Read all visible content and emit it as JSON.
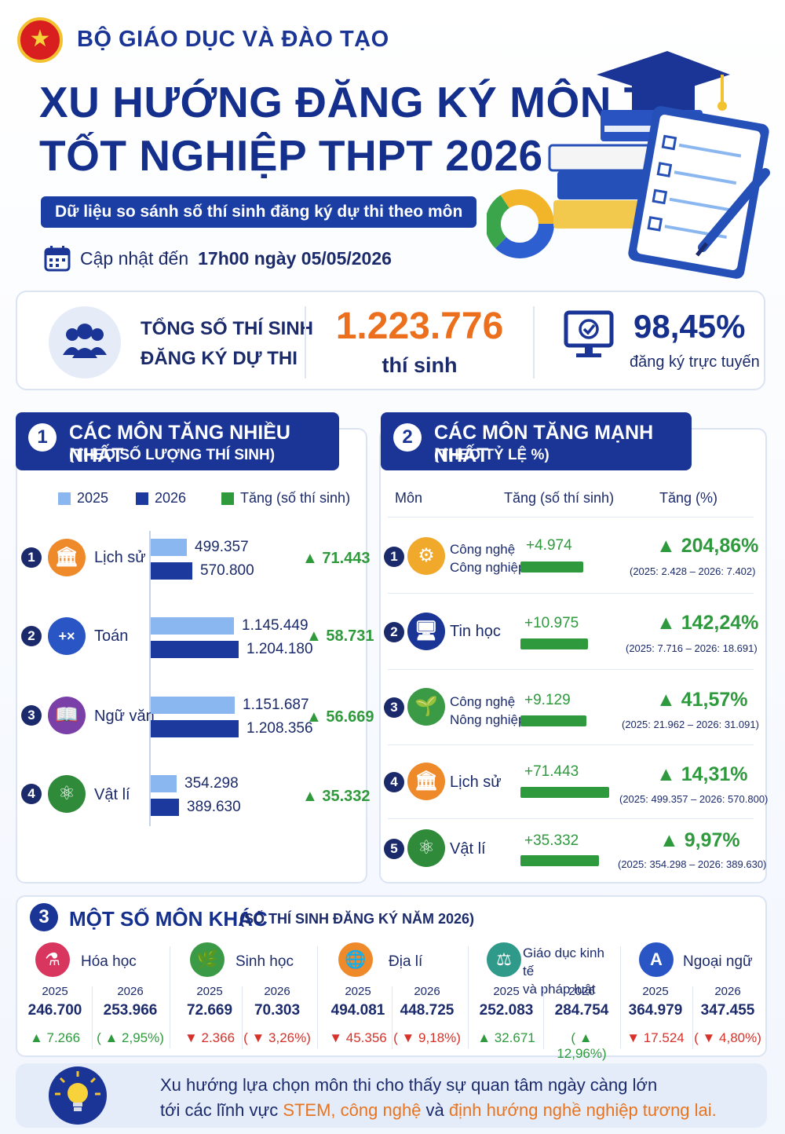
{
  "header": {
    "ministry": "BỘ GIÁO DỤC VÀ ĐÀO TẠO",
    "title_line1": "XU HƯỚNG ĐĂNG KÝ MÔN THI",
    "title_line2": "TỐT NGHIỆP THPT 2026",
    "subtitle": "Dữ liệu so sánh số thí sinh đăng ký dự thi theo môn",
    "update_prefix": "Cập nhật đến",
    "update_time": "17h00 ngày 05/05/2026"
  },
  "summary": {
    "label_line1": "TỔNG SỐ THÍ SINH",
    "label_line2": "ĐĂNG KÝ DỰ THI",
    "total": "1.223.776",
    "total_unit": "thí sinh",
    "online_pct": "98,45%",
    "online_label": "đăng ký trực tuyến"
  },
  "panel1": {
    "num": "1",
    "heading": "CÁC MÔN TĂNG NHIỀU NHẤT",
    "subheading": "(THEO SỐ LƯỢNG THÍ SINH)",
    "legend": [
      "2025",
      "2026",
      "Tăng (số thí sinh)"
    ]
  },
  "panel2": {
    "num": "2",
    "heading": "CÁC MÔN TĂNG MẠNH NHẤT",
    "subheading": "(THEO TỶ LỆ %)",
    "col_subject": "Môn",
    "col_increase": "Tăng (số thí sinh)",
    "col_pct": "Tăng (%)"
  },
  "chart_data": [
    {
      "type": "bar",
      "title": "CÁC MÔN TĂNG NHIỀU NHẤT",
      "categories": [
        "Lịch sử",
        "Toán",
        "Ngữ văn",
        "Vật lí"
      ],
      "ranks": [
        "1",
        "2",
        "3",
        "4"
      ],
      "series": [
        {
          "name": "2025",
          "values": [
            499357,
            1145449,
            1151687,
            354298
          ],
          "labels": [
            "499.357",
            "1.145.449",
            "1.151.687",
            "354.298"
          ]
        },
        {
          "name": "2026",
          "values": [
            570800,
            1204180,
            1208356,
            389630
          ],
          "labels": [
            "570.800",
            "1.204.180",
            "1.208.356",
            "389.630"
          ]
        }
      ],
      "increase": [
        "▲ 71.443",
        "▲ 58.731",
        "▲ 56.669",
        "▲ 35.332"
      ],
      "colors": {
        "2025": "#8ab7f0",
        "2026": "#1c3a9e",
        "increase": "#2f9a3b"
      }
    },
    {
      "type": "bar",
      "title": "CÁC MÔN TĂNG MẠNH NHẤT",
      "rows": [
        {
          "rank": "1",
          "name": [
            "Công nghệ",
            "Công nghiệp"
          ],
          "increase": 4974,
          "increase_label": "+4.974",
          "pct_label": "▲ 204,86%",
          "compare": "(2025: 2.428 – 2026: 7.402)"
        },
        {
          "rank": "2",
          "name": [
            "Tin học"
          ],
          "increase": 10975,
          "increase_label": "+10.975",
          "pct_label": "▲ 142,24%",
          "compare": "(2025: 7.716 – 2026: 18.691)"
        },
        {
          "rank": "3",
          "name": [
            "Công nghệ",
            "Nông nghiệp"
          ],
          "increase": 9129,
          "increase_label": "+9.129",
          "pct_label": "▲ 41,57%",
          "compare": "(2025: 21.962 – 2026: 31.091)"
        },
        {
          "rank": "4",
          "name": [
            "Lịch sử"
          ],
          "increase": 71443,
          "increase_label": "+71.443",
          "pct_label": "▲ 14,31%",
          "compare": "(2025: 499.357 – 2026: 570.800)"
        },
        {
          "rank": "5",
          "name": [
            "Vật lí"
          ],
          "increase": 35332,
          "increase_label": "+35.332",
          "pct_label": "▲ 9,97%",
          "compare": "(2025: 354.298 – 2026: 389.630)"
        }
      ]
    }
  ],
  "section3": {
    "num": "3",
    "title": "MỘT SỐ MÔN KHÁC",
    "subtitle": "(SỐ THÍ SINH ĐĂNG KÝ NĂM 2026)",
    "subjects": [
      {
        "name": "Hóa học",
        "y1": "2025",
        "y2": "2026",
        "v1": "246.700",
        "v2": "253.966",
        "d1": "▲ 7.266",
        "d2": "( ▲ 2,95%)",
        "dir": "up"
      },
      {
        "name": "Sinh học",
        "y1": "2025",
        "y2": "2026",
        "v1": "72.669",
        "v2": "70.303",
        "d1": "▼ 2.366",
        "d2": "( ▼ 3,26%)",
        "dir": "down"
      },
      {
        "name": "Địa lí",
        "y1": "2025",
        "y2": "2026",
        "v1": "494.081",
        "v2": "448.725",
        "d1": "▼ 45.356",
        "d2": "( ▼ 9,18%)",
        "dir": "down"
      },
      {
        "name_line1": "Giáo dục kinh tế",
        "name_line2": "và pháp luật",
        "y1": "2025",
        "y2": "2026",
        "v1": "252.083",
        "v2": "284.754",
        "d1": "▲ 32.671",
        "d2": "( ▲ 12,96%)",
        "dir": "up"
      },
      {
        "name": "Ngoại ngữ",
        "icon_letter": "A",
        "y1": "2025",
        "y2": "2026",
        "v1": "364.979",
        "v2": "347.455",
        "d1": "▼ 17.524",
        "d2": "( ▼ 4,80%)",
        "dir": "down"
      }
    ]
  },
  "footer": {
    "line1": "Xu hướng lựa chọn môn thi cho thấy sự quan tâm ngày càng lớn",
    "line2_a": "tới các lĩnh vực ",
    "line2_hl1": "STEM, công nghệ",
    "line2_b": " và ",
    "line2_hl2": "định hướng nghề nghiệp tương lai."
  }
}
